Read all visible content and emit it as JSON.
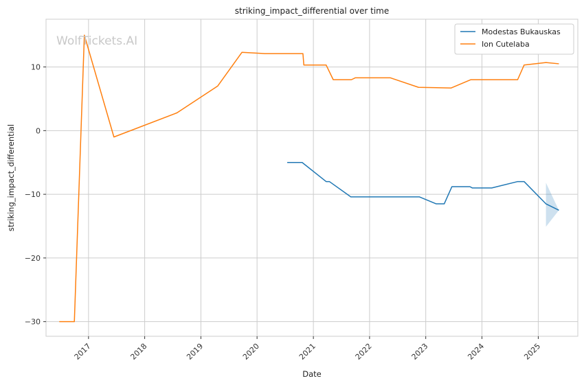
{
  "watermark": "WolfTickets.AI",
  "chart_data": {
    "type": "line",
    "title": "striking_impact_differential over time",
    "xlabel": "Date",
    "ylabel": "striking_impact_differential",
    "x_ticks": [
      "2017",
      "2018",
      "2019",
      "2020",
      "2021",
      "2022",
      "2023",
      "2024",
      "2025"
    ],
    "y_ticks": [
      10,
      0,
      -10,
      -20,
      -30
    ],
    "xlim": [
      "2016-03-31",
      "2025-09-15"
    ],
    "ylim": [
      -32.3,
      17.5
    ],
    "grid": true,
    "legend_position": "top-right",
    "series": [
      {
        "name": "Modestas Bukauskas",
        "color": "#1f77b4",
        "points": [
          [
            "2020-07-15",
            -5.0
          ],
          [
            "2020-10-20",
            -5.0
          ],
          [
            "2021-03-25",
            -8.0
          ],
          [
            "2021-04-15",
            -8.0
          ],
          [
            "2021-09-01",
            -10.4
          ],
          [
            "2022-11-20",
            -10.4
          ],
          [
            "2023-03-10",
            -11.5
          ],
          [
            "2023-05-01",
            -11.5
          ],
          [
            "2023-06-20",
            -8.8
          ],
          [
            "2023-10-15",
            -8.8
          ],
          [
            "2023-10-30",
            -9.0
          ],
          [
            "2024-03-05",
            -9.0
          ],
          [
            "2024-08-20",
            -8.0
          ],
          [
            "2024-10-01",
            -8.0
          ],
          [
            "2025-02-20",
            -11.5
          ],
          [
            "2025-05-15",
            -12.5
          ]
        ],
        "band": [
          [
            "2025-02-20",
            -8.2,
            -15.1
          ],
          [
            "2025-05-15",
            -12.5,
            -12.5
          ]
        ]
      },
      {
        "name": "Ion Cutelaba",
        "color": "#ff7f0e",
        "points": [
          [
            "2016-06-25",
            -30.0
          ],
          [
            "2016-10-01",
            -30.0
          ],
          [
            "2016-12-05",
            15.0
          ],
          [
            "2017-06-15",
            -1.0
          ],
          [
            "2018-07-30",
            2.8
          ],
          [
            "2019-04-20",
            7.0
          ],
          [
            "2019-09-25",
            12.3
          ],
          [
            "2020-02-20",
            12.1
          ],
          [
            "2020-10-25",
            12.1
          ],
          [
            "2020-10-31",
            10.3
          ],
          [
            "2021-03-25",
            10.3
          ],
          [
            "2021-05-10",
            8.0
          ],
          [
            "2021-09-05",
            8.0
          ],
          [
            "2021-10-01",
            8.3
          ],
          [
            "2022-05-15",
            8.3
          ],
          [
            "2022-11-15",
            6.8
          ],
          [
            "2023-06-15",
            6.7
          ],
          [
            "2023-10-20",
            8.0
          ],
          [
            "2024-08-20",
            8.0
          ],
          [
            "2024-10-01",
            10.3
          ],
          [
            "2025-02-20",
            10.7
          ],
          [
            "2025-05-15",
            10.5
          ]
        ]
      }
    ]
  }
}
